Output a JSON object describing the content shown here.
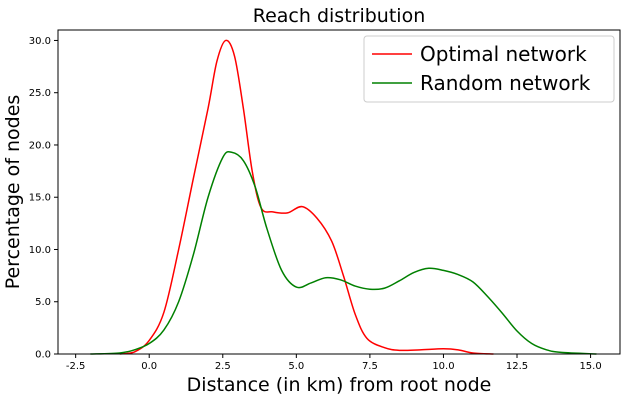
{
  "chart_data": {
    "type": "line",
    "title": "Reach distribution",
    "xlabel": "Distance (in km) from root node",
    "ylabel": "Percentage of nodes",
    "xlim": [
      -3.1,
      16.0
    ],
    "ylim": [
      0,
      31.0
    ],
    "xticks": [
      -2.5,
      0.0,
      2.5,
      5.0,
      7.5,
      10.0,
      12.5,
      15.0
    ],
    "xtick_labels": [
      "-2.5",
      "0.0",
      "2.5",
      "5.0",
      "7.5",
      "10.0",
      "12.5",
      "15.0"
    ],
    "yticks": [
      0,
      5,
      10,
      15,
      20,
      25,
      30
    ],
    "ytick_labels": [
      "0.0",
      "5.0",
      "10.0",
      "15.0",
      "20.0",
      "25.0",
      "30.0"
    ],
    "grid": false,
    "legend": "top-right",
    "series": [
      {
        "name": "Optimal network",
        "color": "#ff0000",
        "points": [
          [
            -1.0,
            0.0
          ],
          [
            -0.5,
            0.2
          ],
          [
            0.0,
            1.3
          ],
          [
            0.5,
            4.0
          ],
          [
            1.0,
            10.0
          ],
          [
            1.5,
            16.8
          ],
          [
            2.0,
            23.5
          ],
          [
            2.3,
            28.0
          ],
          [
            2.6,
            30.0
          ],
          [
            2.9,
            28.5
          ],
          [
            3.2,
            23.5
          ],
          [
            3.5,
            17.5
          ],
          [
            3.8,
            14.0
          ],
          [
            4.2,
            13.6
          ],
          [
            4.7,
            13.5
          ],
          [
            5.2,
            14.1
          ],
          [
            5.7,
            13.0
          ],
          [
            6.2,
            10.8
          ],
          [
            6.6,
            7.5
          ],
          [
            7.0,
            3.8
          ],
          [
            7.4,
            1.5
          ],
          [
            8.0,
            0.6
          ],
          [
            8.5,
            0.35
          ],
          [
            9.2,
            0.4
          ],
          [
            10.0,
            0.5
          ],
          [
            10.5,
            0.4
          ],
          [
            11.0,
            0.1
          ],
          [
            11.7,
            0.0
          ]
        ]
      },
      {
        "name": "Random network",
        "color": "#008000",
        "points": [
          [
            -2.0,
            0.0
          ],
          [
            -1.0,
            0.1
          ],
          [
            -0.5,
            0.4
          ],
          [
            0.0,
            1.0
          ],
          [
            0.5,
            2.3
          ],
          [
            1.0,
            5.0
          ],
          [
            1.5,
            9.5
          ],
          [
            2.0,
            15.0
          ],
          [
            2.5,
            18.8
          ],
          [
            2.8,
            19.3
          ],
          [
            3.2,
            18.5
          ],
          [
            3.6,
            16.0
          ],
          [
            4.0,
            12.0
          ],
          [
            4.5,
            8.0
          ],
          [
            5.0,
            6.4
          ],
          [
            5.5,
            6.8
          ],
          [
            6.0,
            7.3
          ],
          [
            6.5,
            7.1
          ],
          [
            7.0,
            6.5
          ],
          [
            7.5,
            6.2
          ],
          [
            8.0,
            6.3
          ],
          [
            8.5,
            7.0
          ],
          [
            9.0,
            7.8
          ],
          [
            9.5,
            8.2
          ],
          [
            10.0,
            8.0
          ],
          [
            10.5,
            7.6
          ],
          [
            11.0,
            6.9
          ],
          [
            11.5,
            5.5
          ],
          [
            12.0,
            3.9
          ],
          [
            12.5,
            2.2
          ],
          [
            13.0,
            1.0
          ],
          [
            13.5,
            0.4
          ],
          [
            14.0,
            0.15
          ],
          [
            15.2,
            0.0
          ]
        ]
      }
    ]
  }
}
